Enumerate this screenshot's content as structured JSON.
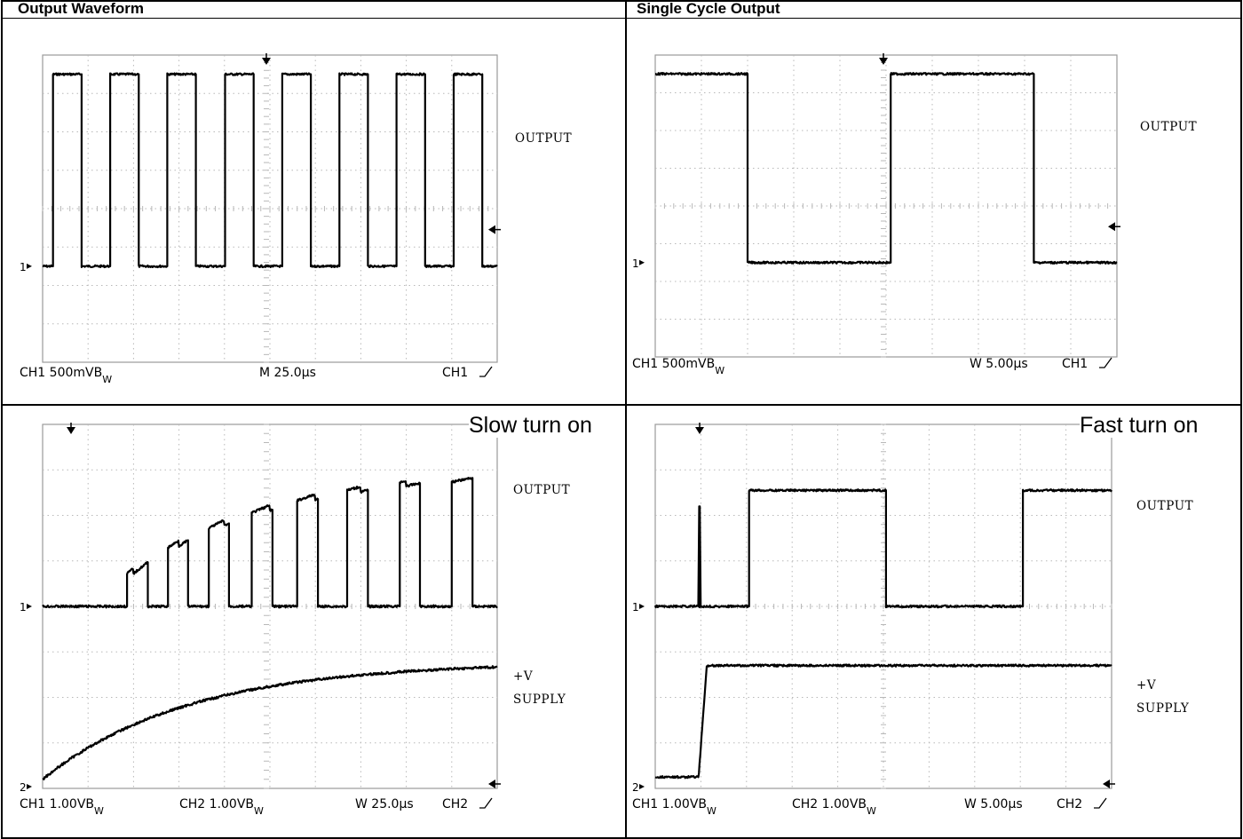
{
  "headers": {
    "left": "Output Waveform",
    "right": "Single Cycle Output"
  },
  "panel_labels": {
    "bottom_left": "Slow turn on",
    "bottom_right": "Fast turn on"
  },
  "scope_colors": {
    "trace": "#000000",
    "grid": "#b8b8b8",
    "frame": "#9a9a9a"
  },
  "chart_data": [
    {
      "type": "line",
      "grid": true,
      "divisions": [
        10,
        8
      ],
      "ch1_marker": "1",
      "signals": [
        "OUTPUT"
      ],
      "status": {
        "left": "CH1  500mVB",
        "left_sub": "W",
        "middle": "M 25.0µs",
        "right": "CH1"
      },
      "series": [
        {
          "name": "OUTPUT",
          "channel": 1,
          "baseline_div": -1.5,
          "high_div": 3.5,
          "square": {
            "start_div": 0.22,
            "period_div": 1.26,
            "duty": 0.5
          }
        }
      ]
    },
    {
      "type": "line",
      "grid": true,
      "divisions": [
        10,
        8
      ],
      "ch1_marker": "1",
      "signals": [
        "OUTPUT"
      ],
      "status": {
        "left": "CH1  500mVB",
        "left_sub": "W",
        "middle": "W 5.00µs",
        "right": "CH1"
      },
      "series": [
        {
          "name": "OUTPUT",
          "channel": 1,
          "baseline_div": -1.5,
          "high_div": 3.5,
          "edges_div": [
            2.0,
            5.1,
            8.2
          ]
        }
      ]
    },
    {
      "type": "line",
      "grid": true,
      "divisions": [
        10,
        8
      ],
      "ch1_marker": "1",
      "ch2_marker": "2",
      "signals": [
        "OUTPUT",
        "+V",
        "SUPPLY"
      ],
      "status": {
        "left": "CH1  1.00VB",
        "left_sub": "W",
        "ch2": "CH2  1.00VB",
        "ch2_sub": "W",
        "middle": "W 25.0µs",
        "right": "CH2"
      },
      "series": [
        {
          "name": "OUTPUT",
          "channel": 1,
          "baseline_div": 0.0,
          "final_high_div": 3.05,
          "pulse_starts_div": [
            1.85,
            2.75,
            3.65,
            4.6,
            5.6,
            6.7,
            7.85,
            9.0
          ],
          "pulse_width_div": 0.45
        },
        {
          "name": "+V SUPPLY",
          "channel": 2,
          "start_div": -3.8,
          "final_div": -1.22,
          "tau_div": 3.2
        }
      ]
    },
    {
      "type": "line",
      "grid": true,
      "divisions": [
        10,
        8
      ],
      "ch1_marker": "1",
      "ch2_marker": "2",
      "signals": [
        "OUTPUT",
        "+V",
        "SUPPLY"
      ],
      "status": {
        "left": "CH1  1.00VB",
        "left_sub": "W",
        "ch2": "CH2  1.00VB",
        "ch2_sub": "W",
        "middle": "W 5.00µs",
        "right": "CH2"
      },
      "series": [
        {
          "name": "OUTPUT",
          "channel": 1,
          "baseline_div": 0.0,
          "high_div": 2.55,
          "spike_div": 0.95,
          "edges_div": [
            2.05,
            5.05,
            8.05
          ]
        },
        {
          "name": "+V SUPPLY",
          "channel": 2,
          "start_div": -3.75,
          "final_div": -1.3,
          "rise_div": 0.95
        }
      ]
    }
  ]
}
